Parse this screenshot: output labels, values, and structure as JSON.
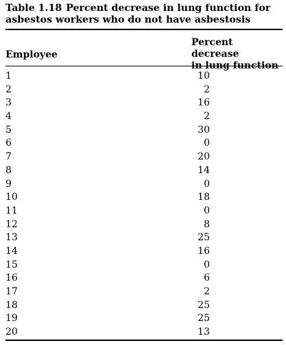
{
  "caption": {
    "number": "Table 1.18",
    "title": "Percent decrease in lung function for asbestos workers who do not have asbestosis"
  },
  "table": {
    "headers": {
      "employee": "Employee",
      "percent_line1": "Percent decrease",
      "percent_line2": "in lung function"
    },
    "rows": [
      {
        "employee": "1",
        "percent": "10"
      },
      {
        "employee": "2",
        "percent": "2"
      },
      {
        "employee": "3",
        "percent": "16"
      },
      {
        "employee": "4",
        "percent": "2"
      },
      {
        "employee": "5",
        "percent": "30"
      },
      {
        "employee": "6",
        "percent": "0"
      },
      {
        "employee": "7",
        "percent": "20"
      },
      {
        "employee": "8",
        "percent": "14"
      },
      {
        "employee": "9",
        "percent": "0"
      },
      {
        "employee": "10",
        "percent": "18"
      },
      {
        "employee": "11",
        "percent": "0"
      },
      {
        "employee": "12",
        "percent": "8"
      },
      {
        "employee": "13",
        "percent": "25"
      },
      {
        "employee": "14",
        "percent": "16"
      },
      {
        "employee": "15",
        "percent": "0"
      },
      {
        "employee": "16",
        "percent": "6"
      },
      {
        "employee": "17",
        "percent": "2"
      },
      {
        "employee": "18",
        "percent": "25"
      },
      {
        "employee": "19",
        "percent": "25"
      },
      {
        "employee": "20",
        "percent": "13"
      }
    ]
  }
}
